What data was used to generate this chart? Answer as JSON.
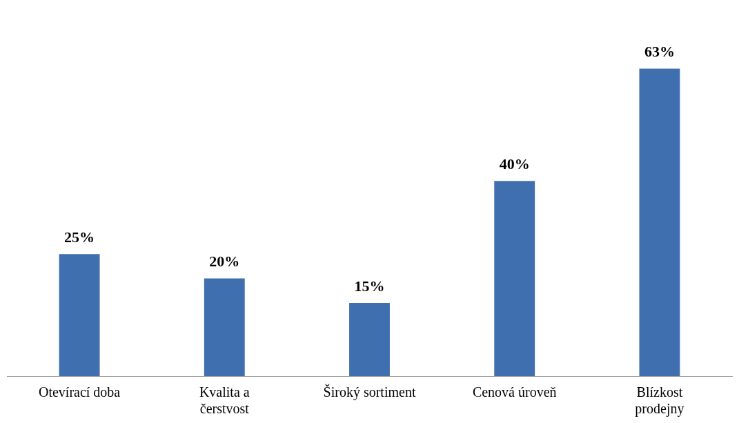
{
  "chart_data": {
    "type": "bar",
    "categories": [
      "Otevírací doba",
      "Kvalita a čerstvost",
      "Široký sortiment",
      "Cenová úroveň",
      "Blízkost prodejny"
    ],
    "values": [
      25,
      20,
      15,
      40,
      63
    ],
    "color": "#3f6fae",
    "value_labels": [
      "25%",
      "20%",
      "15%",
      "40%",
      "63%"
    ],
    "grid": false,
    "legend": false
  }
}
